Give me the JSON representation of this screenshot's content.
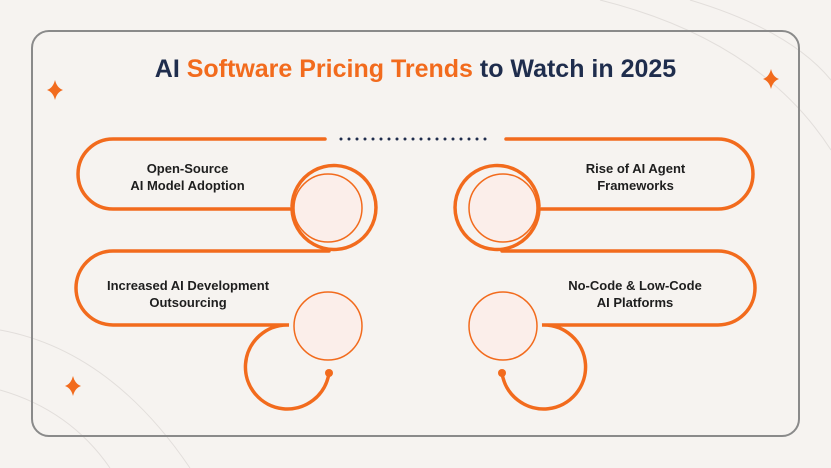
{
  "title": {
    "part1": "AI ",
    "accent": "Software Pricing Trends",
    "part2": " to Watch in 2025",
    "accent_color": "#f26b1d",
    "text_color": "#1f2d4d"
  },
  "items": [
    {
      "line1": "Open-Source",
      "line2": "AI Model Adoption"
    },
    {
      "line1": "Rise of AI Agent",
      "line2": "Frameworks"
    },
    {
      "line1": "Increased AI Development",
      "line2": "Outsourcing"
    },
    {
      "line1": "No-Code & Low-Code",
      "line2": "AI Platforms"
    }
  ],
  "colors": {
    "orange": "#f26b1d",
    "circle_fill": "#fbeeea",
    "frame": "#8a8a8a",
    "dots": "#1f2d4d"
  }
}
